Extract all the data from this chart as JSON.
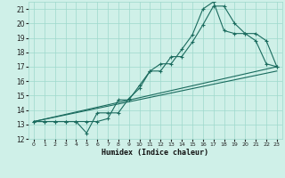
{
  "xlabel": "Humidex (Indice chaleur)",
  "xlim": [
    -0.5,
    23.5
  ],
  "ylim": [
    12,
    21.5
  ],
  "xticks": [
    0,
    1,
    2,
    3,
    4,
    5,
    6,
    7,
    8,
    9,
    10,
    11,
    12,
    13,
    14,
    15,
    16,
    17,
    18,
    19,
    20,
    21,
    22,
    23
  ],
  "yticks": [
    12,
    13,
    14,
    15,
    16,
    17,
    18,
    19,
    20,
    21
  ],
  "bg_color": "#cff0e8",
  "line_color": "#1a6b5e",
  "series1_x": [
    0,
    1,
    2,
    3,
    4,
    5,
    6,
    7,
    8,
    9,
    10,
    11,
    12,
    13,
    14,
    15,
    16,
    17,
    18,
    19,
    20,
    21,
    22,
    23
  ],
  "series1_y": [
    13.2,
    13.2,
    13.2,
    13.2,
    13.2,
    12.4,
    13.8,
    13.8,
    13.8,
    14.8,
    15.5,
    16.7,
    16.7,
    17.7,
    17.7,
    18.7,
    19.9,
    21.2,
    21.2,
    20.0,
    19.3,
    18.8,
    17.2,
    17.0
  ],
  "series2_x": [
    0,
    1,
    2,
    3,
    4,
    5,
    6,
    7,
    8,
    9,
    10,
    11,
    12,
    13,
    14,
    15,
    16,
    17,
    18,
    19,
    20,
    21,
    22,
    23
  ],
  "series2_y": [
    13.2,
    13.2,
    13.2,
    13.2,
    13.2,
    13.2,
    13.2,
    13.4,
    14.7,
    14.7,
    15.7,
    16.7,
    17.2,
    17.2,
    18.2,
    19.2,
    21.0,
    21.5,
    19.5,
    19.3,
    19.3,
    19.3,
    18.8,
    17.0
  ],
  "series3_x": [
    0,
    23
  ],
  "series3_y": [
    13.2,
    17.0
  ],
  "series4_x": [
    0,
    23
  ],
  "series4_y": [
    13.2,
    16.7
  ]
}
